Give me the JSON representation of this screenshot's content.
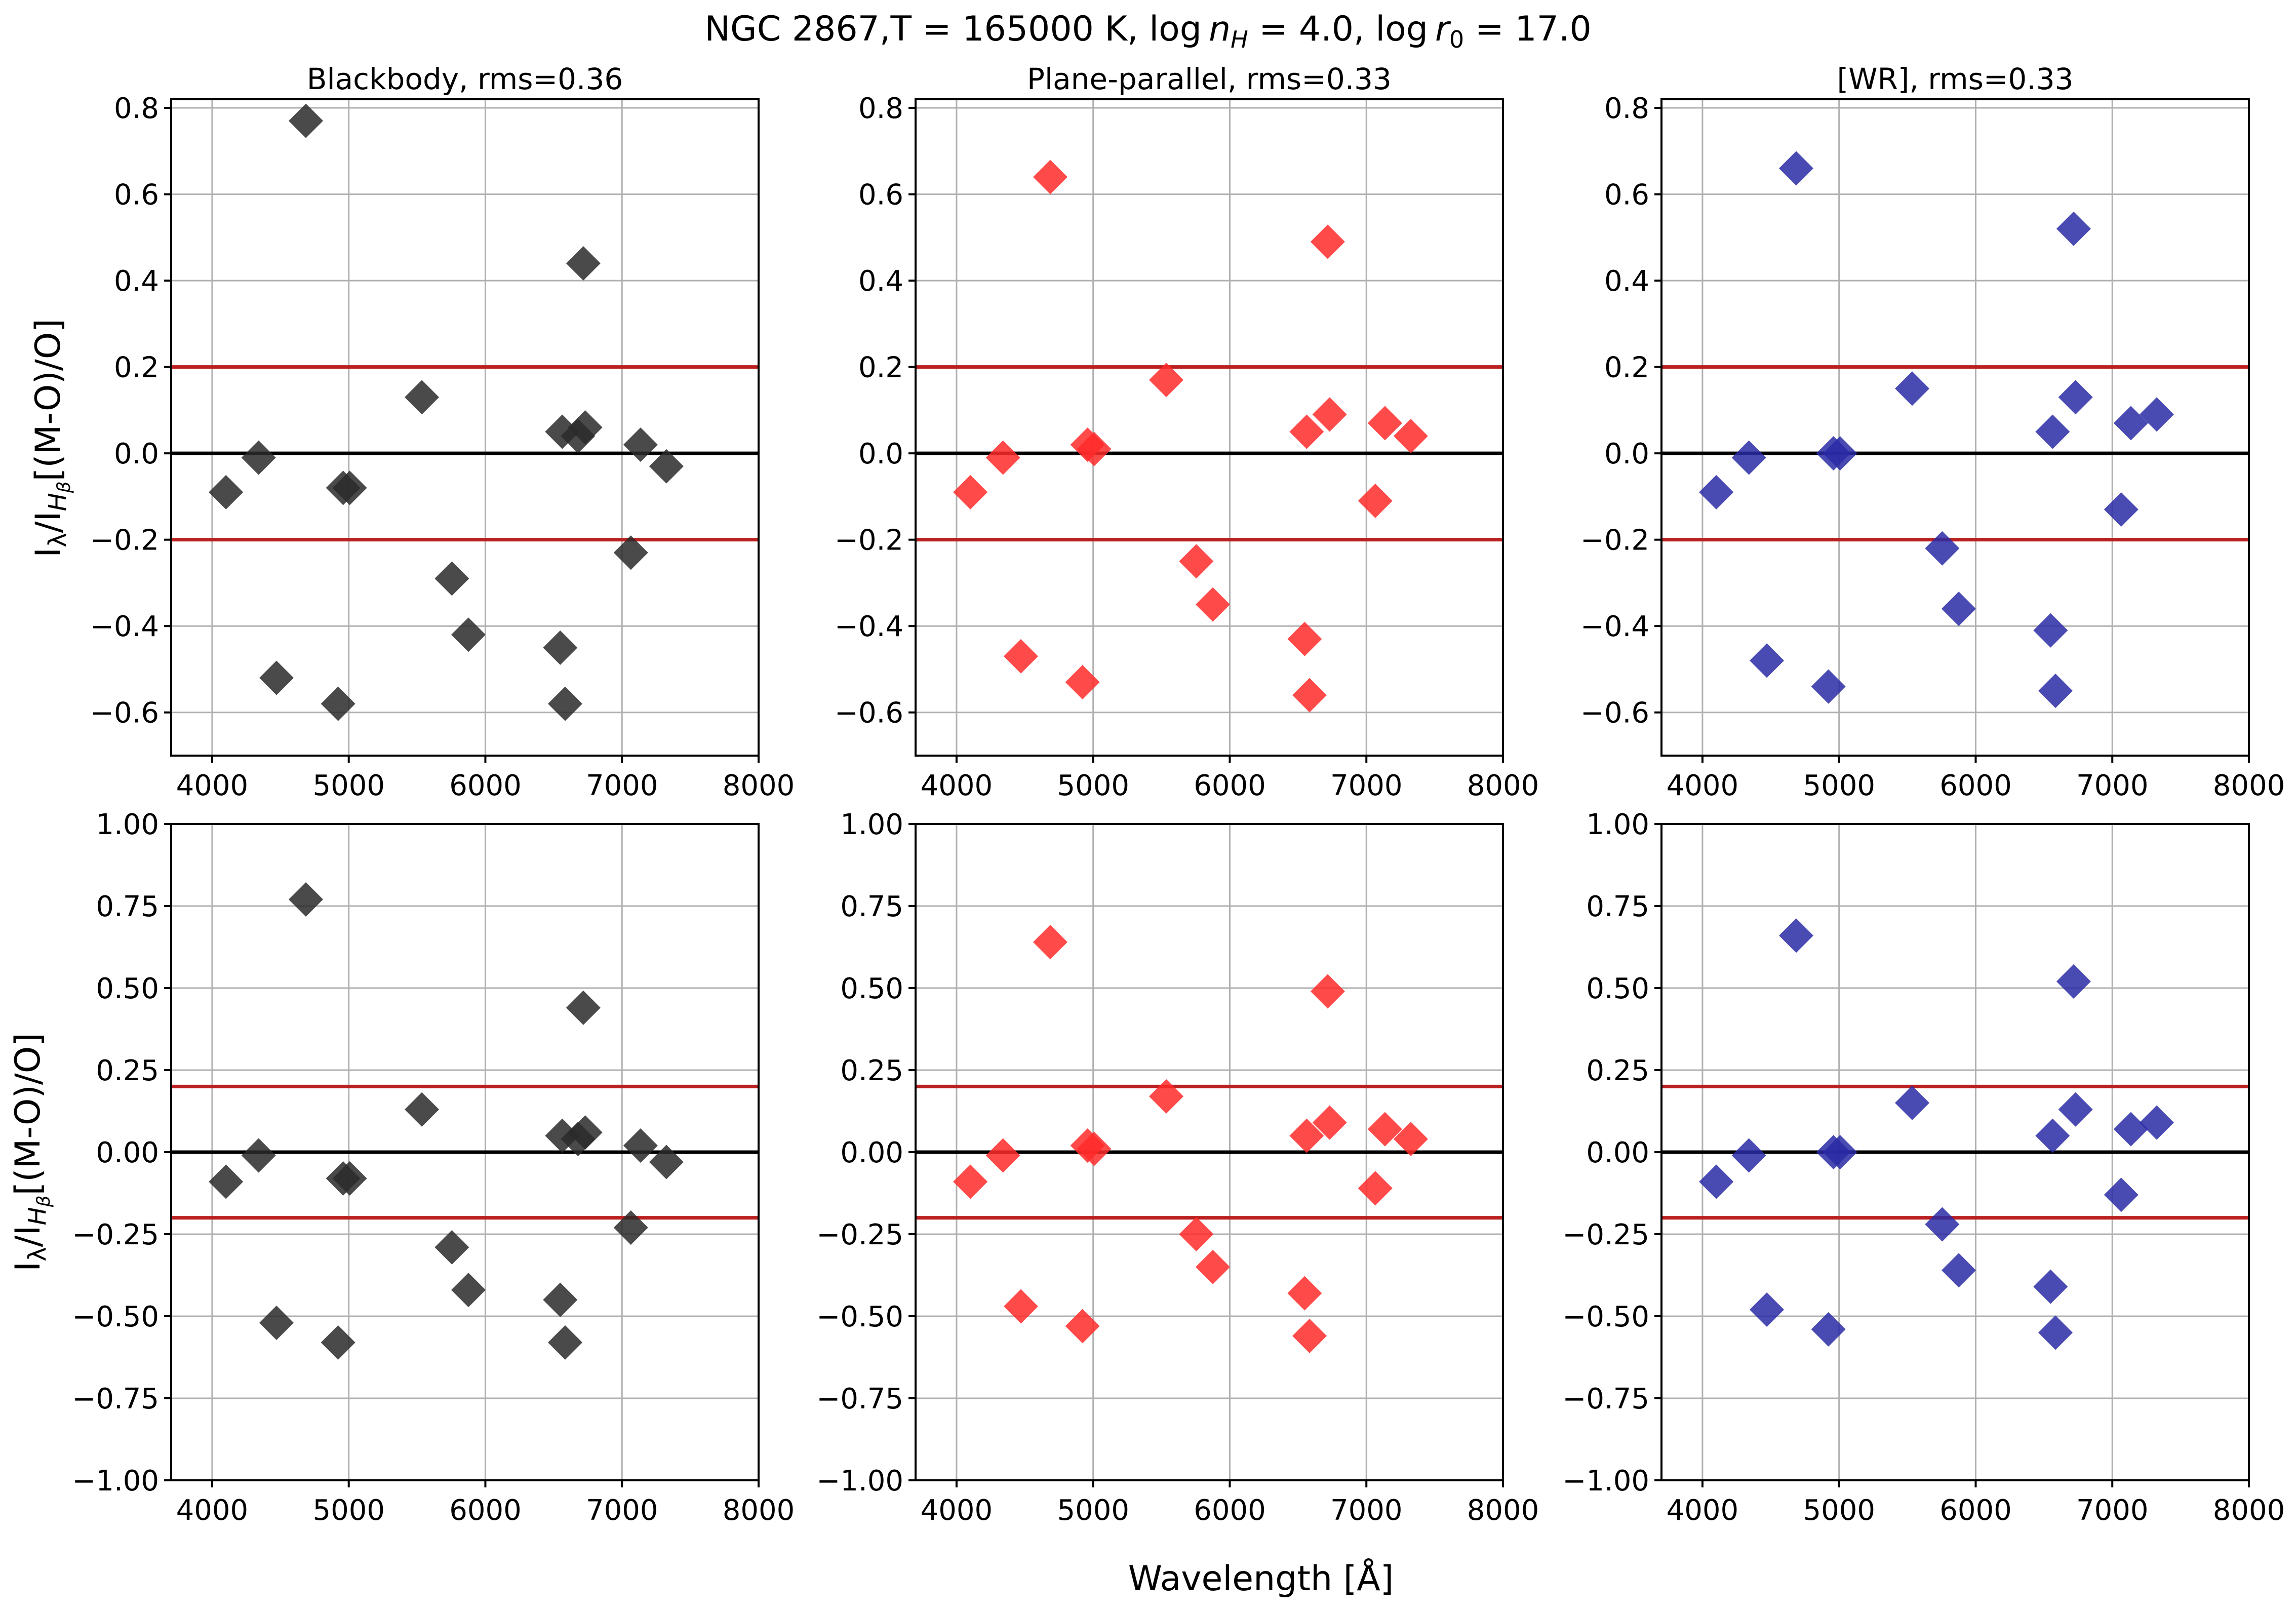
{
  "figure": {
    "suptitle_text": "NGC 2867,T = 165000 K, ",
    "suptitle_log1": "log",
    "suptitle_n": "n",
    "suptitle_H": "H",
    "suptitle_mid": " = 4.0, ",
    "suptitle_log2": "log",
    "suptitle_r": "r",
    "suptitle_0": "0",
    "suptitle_end": " = 17.0",
    "xlabel": "Wavelength [Å]",
    "ylabel_I": "I",
    "ylabel_lambda": "λ",
    "ylabel_slash": "/I",
    "ylabel_H": "H",
    "ylabel_beta": "β",
    "ylabel_rest": "[(M-O)/O]"
  },
  "chart_data": [
    {
      "type": "scatter",
      "row": 0,
      "col": 0,
      "title": "Blackbody, rms=0.36",
      "xlim": [
        3700,
        8000
      ],
      "ylim": [
        -0.7,
        0.82
      ],
      "xticks": [
        4000,
        5000,
        6000,
        7000,
        8000
      ],
      "yticks": [
        -0.6,
        -0.4,
        -0.2,
        0.0,
        0.2,
        0.4,
        0.6,
        0.8
      ],
      "ytick_labels": [
        "−0.6",
        "−0.4",
        "−0.2",
        "0.0",
        "0.2",
        "0.4",
        "0.6",
        "0.8"
      ],
      "reference_lines": [
        {
          "y": 0.2,
          "color": "#bb2020"
        },
        {
          "y": -0.2,
          "color": "#bb2020"
        },
        {
          "y": 0.0,
          "color": "#000000"
        }
      ],
      "marker_color": "#2a2a2a",
      "x": [
        4101,
        4340,
        4471,
        4686,
        4922,
        4959,
        5007,
        5535,
        5755,
        5876,
        6548,
        6563,
        6584,
        6678,
        6717,
        6731,
        7065,
        7136,
        7325
      ],
      "y": [
        -0.09,
        -0.01,
        -0.52,
        0.77,
        -0.58,
        -0.08,
        -0.08,
        0.13,
        -0.29,
        -0.42,
        -0.45,
        0.05,
        -0.58,
        0.04,
        0.44,
        0.06,
        -0.23,
        0.02,
        -0.03
      ],
      "grid": true
    },
    {
      "type": "scatter",
      "row": 0,
      "col": 1,
      "title": "Plane-parallel, rms=0.33",
      "xlim": [
        3700,
        8000
      ],
      "ylim": [
        -0.7,
        0.82
      ],
      "xticks": [
        4000,
        5000,
        6000,
        7000,
        8000
      ],
      "yticks": [
        -0.6,
        -0.4,
        -0.2,
        0.0,
        0.2,
        0.4,
        0.6,
        0.8
      ],
      "ytick_labels": [
        "−0.6",
        "−0.4",
        "−0.2",
        "0.0",
        "0.2",
        "0.4",
        "0.6",
        "0.8"
      ],
      "reference_lines": [
        {
          "y": 0.2,
          "color": "#bb2020"
        },
        {
          "y": -0.2,
          "color": "#bb2020"
        },
        {
          "y": 0.0,
          "color": "#000000"
        }
      ],
      "marker_color": "#ff2a2a",
      "x": [
        4101,
        4340,
        4471,
        4686,
        4922,
        4959,
        5007,
        5535,
        5755,
        5876,
        6548,
        6563,
        6584,
        6717,
        6731,
        7065,
        7136,
        7325
      ],
      "y": [
        -0.09,
        -0.01,
        -0.47,
        0.64,
        -0.53,
        0.02,
        0.01,
        0.17,
        -0.25,
        -0.35,
        -0.43,
        0.05,
        -0.56,
        0.49,
        0.09,
        -0.11,
        0.07,
        0.04
      ],
      "grid": true
    },
    {
      "type": "scatter",
      "row": 0,
      "col": 2,
      "title": "[WR], rms=0.33",
      "xlim": [
        3700,
        8000
      ],
      "ylim": [
        -0.7,
        0.82
      ],
      "xticks": [
        4000,
        5000,
        6000,
        7000,
        8000
      ],
      "yticks": [
        -0.6,
        -0.4,
        -0.2,
        0.0,
        0.2,
        0.4,
        0.6,
        0.8
      ],
      "ytick_labels": [
        "−0.6",
        "−0.4",
        "−0.2",
        "0.0",
        "0.2",
        "0.4",
        "0.6",
        "0.8"
      ],
      "reference_lines": [
        {
          "y": 0.2,
          "color": "#bb2020"
        },
        {
          "y": -0.2,
          "color": "#bb2020"
        },
        {
          "y": 0.0,
          "color": "#000000"
        }
      ],
      "marker_color": "#2a2aa6",
      "x": [
        4101,
        4340,
        4471,
        4686,
        4922,
        4959,
        5007,
        5535,
        5755,
        5876,
        6548,
        6563,
        6584,
        6717,
        6731,
        7065,
        7136,
        7325
      ],
      "y": [
        -0.09,
        -0.01,
        -0.48,
        0.66,
        -0.54,
        0.0,
        0.0,
        0.15,
        -0.22,
        -0.36,
        -0.41,
        0.05,
        -0.55,
        0.52,
        0.13,
        -0.13,
        0.07,
        0.09
      ],
      "grid": true
    },
    {
      "type": "scatter",
      "row": 1,
      "col": 0,
      "title": "",
      "xlim": [
        3700,
        8000
      ],
      "ylim": [
        -1.0,
        1.0
      ],
      "xticks": [
        4000,
        5000,
        6000,
        7000,
        8000
      ],
      "yticks": [
        -1.0,
        -0.75,
        -0.5,
        -0.25,
        0.0,
        0.25,
        0.5,
        0.75,
        1.0
      ],
      "ytick_labels": [
        "−1.00",
        "−0.75",
        "−0.50",
        "−0.25",
        "0.00",
        "0.25",
        "0.50",
        "0.75",
        "1.00"
      ],
      "reference_lines": [
        {
          "y": 0.2,
          "color": "#bb2020"
        },
        {
          "y": -0.2,
          "color": "#bb2020"
        },
        {
          "y": 0.0,
          "color": "#000000"
        }
      ],
      "marker_color": "#2a2a2a",
      "x": [
        4101,
        4340,
        4471,
        4686,
        4922,
        4959,
        5007,
        5535,
        5755,
        5876,
        6548,
        6563,
        6584,
        6678,
        6717,
        6731,
        7065,
        7136,
        7325
      ],
      "y": [
        -0.09,
        -0.01,
        -0.52,
        0.77,
        -0.58,
        -0.08,
        -0.08,
        0.13,
        -0.29,
        -0.42,
        -0.45,
        0.05,
        -0.58,
        0.04,
        0.44,
        0.06,
        -0.23,
        0.02,
        -0.03
      ],
      "grid": true
    },
    {
      "type": "scatter",
      "row": 1,
      "col": 1,
      "title": "",
      "xlim": [
        3700,
        8000
      ],
      "ylim": [
        -1.0,
        1.0
      ],
      "xticks": [
        4000,
        5000,
        6000,
        7000,
        8000
      ],
      "yticks": [
        -1.0,
        -0.75,
        -0.5,
        -0.25,
        0.0,
        0.25,
        0.5,
        0.75,
        1.0
      ],
      "ytick_labels": [
        "−1.00",
        "−0.75",
        "−0.50",
        "−0.25",
        "0.00",
        "0.25",
        "0.50",
        "0.75",
        "1.00"
      ],
      "reference_lines": [
        {
          "y": 0.2,
          "color": "#bb2020"
        },
        {
          "y": -0.2,
          "color": "#bb2020"
        },
        {
          "y": 0.0,
          "color": "#000000"
        }
      ],
      "marker_color": "#ff2a2a",
      "x": [
        4101,
        4340,
        4471,
        4686,
        4922,
        4959,
        5007,
        5535,
        5755,
        5876,
        6548,
        6563,
        6584,
        6717,
        6731,
        7065,
        7136,
        7325
      ],
      "y": [
        -0.09,
        -0.01,
        -0.47,
        0.64,
        -0.53,
        0.02,
        0.01,
        0.17,
        -0.25,
        -0.35,
        -0.43,
        0.05,
        -0.56,
        0.49,
        0.09,
        -0.11,
        0.07,
        0.04
      ],
      "grid": true
    },
    {
      "type": "scatter",
      "row": 1,
      "col": 2,
      "title": "",
      "xlim": [
        3700,
        8000
      ],
      "ylim": [
        -1.0,
        1.0
      ],
      "xticks": [
        4000,
        5000,
        6000,
        7000,
        8000
      ],
      "yticks": [
        -1.0,
        -0.75,
        -0.5,
        -0.25,
        0.0,
        0.25,
        0.5,
        0.75,
        1.0
      ],
      "ytick_labels": [
        "−1.00",
        "−0.75",
        "−0.50",
        "−0.25",
        "0.00",
        "0.25",
        "0.50",
        "0.75",
        "1.00"
      ],
      "reference_lines": [
        {
          "y": 0.2,
          "color": "#bb2020"
        },
        {
          "y": -0.2,
          "color": "#bb2020"
        },
        {
          "y": 0.0,
          "color": "#000000"
        }
      ],
      "marker_color": "#2a2aa6",
      "x": [
        4101,
        4340,
        4471,
        4686,
        4922,
        4959,
        5007,
        5535,
        5755,
        5876,
        6548,
        6563,
        6584,
        6717,
        6731,
        7065,
        7136,
        7325
      ],
      "y": [
        -0.09,
        -0.01,
        -0.48,
        0.66,
        -0.54,
        0.0,
        0.0,
        0.15,
        -0.22,
        -0.36,
        -0.41,
        0.05,
        -0.55,
        0.52,
        0.13,
        -0.13,
        0.07,
        0.09
      ],
      "grid": true
    }
  ]
}
